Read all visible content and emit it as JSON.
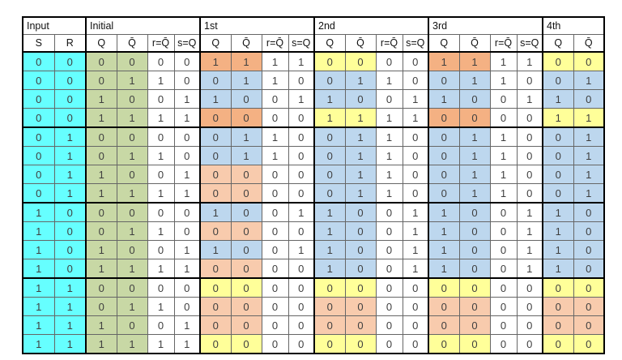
{
  "table": {
    "group_headers": [
      {
        "label": "Input",
        "span": 2
      },
      {
        "label": "Initial",
        "span": 4
      },
      {
        "label": "1st",
        "span": 4
      },
      {
        "label": "2nd",
        "span": 4
      },
      {
        "label": "3rd",
        "span": 4
      },
      {
        "label": "4th",
        "span": 2
      }
    ],
    "sub_headers": [
      "S",
      "R",
      "Q",
      "Q̄",
      "r=Q̄",
      "s=Q",
      "Q",
      "Q̄",
      "r=Q̄",
      "s=Q",
      "Q",
      "Q̄",
      "r=Q̄",
      "s=Q",
      "Q",
      "Q̄",
      "r=Q̄",
      "s=Q",
      "Q",
      "Q̄"
    ],
    "colors": {
      "input_bg": "#66FFFF",
      "initial_bg": "#C8D8A5",
      "stable_blue": "#BDD7EE",
      "oscillation_orange": "#F4B183",
      "transition_orange": "#F8CBAD",
      "metastable_yellow": "#FFFF99",
      "grid_line": "#666666",
      "section_line": "#000000",
      "digit_text": "#3F3F3F"
    },
    "rows": [
      {
        "cells": [
          "0",
          "0",
          "0",
          "0",
          "0",
          "0",
          "1",
          "1",
          "1",
          "1",
          "0",
          "0",
          "0",
          "0",
          "1",
          "1",
          "1",
          "1",
          "0",
          "0"
        ],
        "section_colors": [
          "oscillation_orange",
          "metastable_yellow",
          "oscillation_orange",
          "metastable_yellow"
        ]
      },
      {
        "cells": [
          "0",
          "0",
          "0",
          "1",
          "1",
          "0",
          "0",
          "1",
          "1",
          "0",
          "0",
          "1",
          "1",
          "0",
          "0",
          "1",
          "1",
          "0",
          "0",
          "1"
        ],
        "section_colors": [
          "stable_blue",
          "stable_blue",
          "stable_blue",
          "stable_blue"
        ]
      },
      {
        "cells": [
          "0",
          "0",
          "1",
          "0",
          "0",
          "1",
          "1",
          "0",
          "0",
          "1",
          "1",
          "0",
          "0",
          "1",
          "1",
          "0",
          "0",
          "1",
          "1",
          "0"
        ],
        "section_colors": [
          "stable_blue",
          "stable_blue",
          "stable_blue",
          "stable_blue"
        ]
      },
      {
        "cells": [
          "0",
          "0",
          "1",
          "1",
          "1",
          "1",
          "0",
          "0",
          "0",
          "0",
          "1",
          "1",
          "1",
          "1",
          "0",
          "0",
          "0",
          "0",
          "1",
          "1"
        ],
        "section_colors": [
          "oscillation_orange",
          "metastable_yellow",
          "oscillation_orange",
          "metastable_yellow"
        ]
      },
      {
        "cells": [
          "0",
          "1",
          "0",
          "0",
          "0",
          "0",
          "0",
          "1",
          "1",
          "0",
          "0",
          "1",
          "1",
          "0",
          "0",
          "1",
          "1",
          "0",
          "0",
          "1"
        ],
        "section_colors": [
          "stable_blue",
          "stable_blue",
          "stable_blue",
          "stable_blue"
        ]
      },
      {
        "cells": [
          "0",
          "1",
          "0",
          "1",
          "1",
          "0",
          "0",
          "1",
          "1",
          "0",
          "0",
          "1",
          "1",
          "0",
          "0",
          "1",
          "1",
          "0",
          "0",
          "1"
        ],
        "section_colors": [
          "stable_blue",
          "stable_blue",
          "stable_blue",
          "stable_blue"
        ]
      },
      {
        "cells": [
          "0",
          "1",
          "1",
          "0",
          "0",
          "1",
          "0",
          "0",
          "0",
          "0",
          "0",
          "1",
          "1",
          "0",
          "0",
          "1",
          "1",
          "0",
          "0",
          "1"
        ],
        "section_colors": [
          "transition_orange",
          "stable_blue",
          "stable_blue",
          "stable_blue"
        ]
      },
      {
        "cells": [
          "0",
          "1",
          "1",
          "1",
          "1",
          "1",
          "0",
          "0",
          "0",
          "0",
          "0",
          "1",
          "1",
          "0",
          "0",
          "1",
          "1",
          "0",
          "0",
          "1"
        ],
        "section_colors": [
          "transition_orange",
          "stable_blue",
          "stable_blue",
          "stable_blue"
        ]
      },
      {
        "cells": [
          "1",
          "0",
          "0",
          "0",
          "0",
          "0",
          "1",
          "0",
          "0",
          "1",
          "1",
          "0",
          "0",
          "1",
          "1",
          "0",
          "0",
          "1",
          "1",
          "0"
        ],
        "section_colors": [
          "stable_blue",
          "stable_blue",
          "stable_blue",
          "stable_blue"
        ]
      },
      {
        "cells": [
          "1",
          "0",
          "0",
          "1",
          "1",
          "0",
          "0",
          "0",
          "0",
          "0",
          "1",
          "0",
          "0",
          "1",
          "1",
          "0",
          "0",
          "1",
          "1",
          "0"
        ],
        "section_colors": [
          "transition_orange",
          "stable_blue",
          "stable_blue",
          "stable_blue"
        ]
      },
      {
        "cells": [
          "1",
          "0",
          "1",
          "0",
          "0",
          "1",
          "1",
          "0",
          "0",
          "1",
          "1",
          "0",
          "0",
          "1",
          "1",
          "0",
          "0",
          "1",
          "1",
          "0"
        ],
        "section_colors": [
          "stable_blue",
          "stable_blue",
          "stable_blue",
          "stable_blue"
        ]
      },
      {
        "cells": [
          "1",
          "0",
          "1",
          "1",
          "1",
          "1",
          "0",
          "0",
          "0",
          "0",
          "1",
          "0",
          "0",
          "1",
          "1",
          "0",
          "0",
          "1",
          "1",
          "0"
        ],
        "section_colors": [
          "transition_orange",
          "stable_blue",
          "stable_blue",
          "stable_blue"
        ]
      },
      {
        "cells": [
          "1",
          "1",
          "0",
          "0",
          "0",
          "0",
          "0",
          "0",
          "0",
          "0",
          "0",
          "0",
          "0",
          "0",
          "0",
          "0",
          "0",
          "0",
          "0",
          "0"
        ],
        "section_colors": [
          "metastable_yellow",
          "metastable_yellow",
          "metastable_yellow",
          "metastable_yellow"
        ]
      },
      {
        "cells": [
          "1",
          "1",
          "0",
          "1",
          "1",
          "0",
          "0",
          "0",
          "0",
          "0",
          "0",
          "0",
          "0",
          "0",
          "0",
          "0",
          "0",
          "0",
          "0",
          "0"
        ],
        "section_colors": [
          "transition_orange",
          "transition_orange",
          "transition_orange",
          "transition_orange"
        ]
      },
      {
        "cells": [
          "1",
          "1",
          "1",
          "0",
          "0",
          "1",
          "0",
          "0",
          "0",
          "0",
          "0",
          "0",
          "0",
          "0",
          "0",
          "0",
          "0",
          "0",
          "0",
          "0"
        ],
        "section_colors": [
          "transition_orange",
          "transition_orange",
          "transition_orange",
          "transition_orange"
        ]
      },
      {
        "cells": [
          "1",
          "1",
          "1",
          "1",
          "1",
          "1",
          "0",
          "0",
          "0",
          "0",
          "0",
          "0",
          "0",
          "0",
          "0",
          "0",
          "0",
          "0",
          "0",
          "0"
        ],
        "section_colors": [
          "metastable_yellow",
          "metastable_yellow",
          "metastable_yellow",
          "metastable_yellow"
        ]
      }
    ]
  }
}
